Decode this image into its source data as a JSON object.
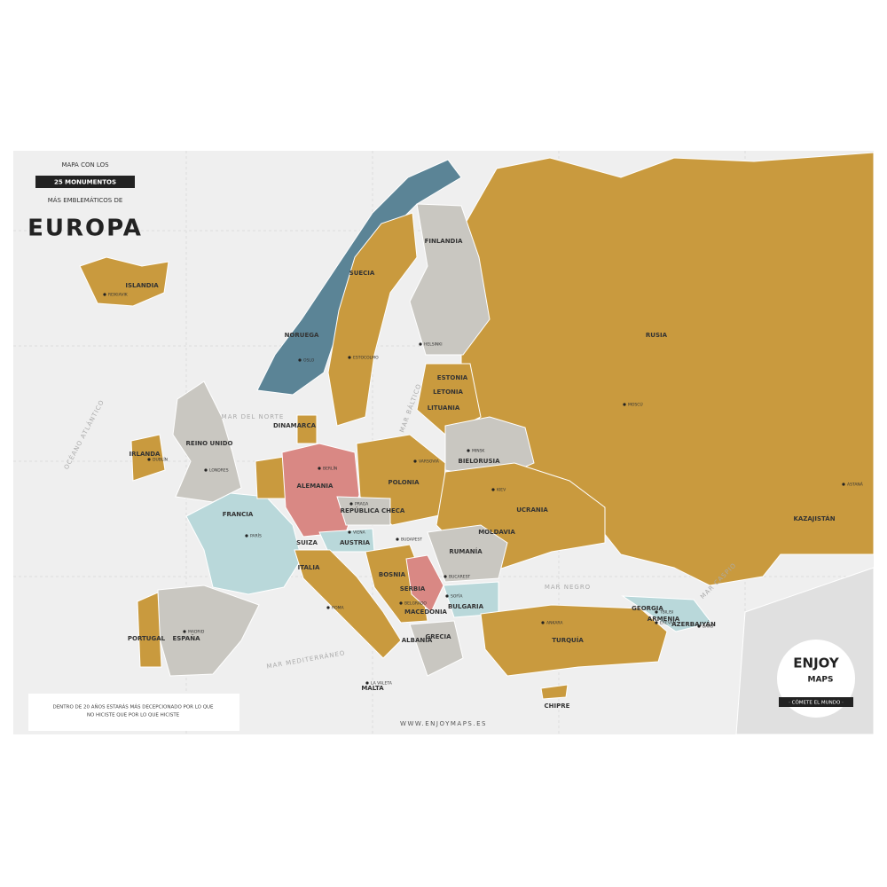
{
  "header": {
    "pre_title": "MAPA CON LOS",
    "badge": "25 MONUMENTOS",
    "subtitle": "MÁS EMBLEMÁTICOS DE",
    "title": "EUROPA"
  },
  "countries": [
    "ISLANDIA",
    "NORUEGA",
    "SUECIA",
    "FINLANDIA",
    "RUSIA",
    "ESTONIA",
    "LETONIA",
    "LITUANIA",
    "BIELORUSIA",
    "POLONIA",
    "ALEMANIA",
    "DINAMARCA",
    "IRLANDA",
    "REINO UNIDO",
    "FRANCIA",
    "ESPAÑA",
    "PORTUGAL",
    "ITALIA",
    "SUIZA",
    "AUSTRIA",
    "REPÚBLICA CHECA",
    "RUMANÍA",
    "MOLDAVIA",
    "UCRANIA",
    "BULGARIA",
    "SERBIA",
    "BOSNIA",
    "ALBANIA",
    "MACEDONIA",
    "GRECIA",
    "TURQUÍA",
    "GEORGIA",
    "ARMENIA",
    "AZERBAIYÁN",
    "KAZAJISTÁN",
    "MALTA",
    "CHIPRE"
  ],
  "cities": [
    "REIKIAVIK",
    "OSLO",
    "ESTOCOLMO",
    "HELSINKI",
    "MOSCÚ",
    "MINSK",
    "VARSOVIA",
    "BERLÍN",
    "DUBLÍN",
    "LONDRES",
    "PARÍS",
    "MADRID",
    "PRAGA",
    "VIENA",
    "BUDAPEST",
    "BUCAREST",
    "SOFÍA",
    "BELGRADO",
    "KIEV",
    "ANKARA",
    "ASTANÁ",
    "TBILISI",
    "EREVÁN",
    "BAKÚ",
    "ROMA",
    "LA VALETA"
  ],
  "seas": [
    "OCÉANO ATLÁNTICO",
    "MAR DEL NORTE",
    "MAR BÁLTICO",
    "MAR NEGRO",
    "MAR CASPIO",
    "MAR MEDITERRÁNEO"
  ],
  "quote": {
    "line1": "DENTRO DE 20 AÑOS ESTARÁS MÁS DECEPCIONADO POR LO QUE",
    "line2": "NO HICISTE QUE POR LO QUE HICISTE"
  },
  "website": "WWW.ENJOYMAPS.ES",
  "logo": {
    "line1": "ENJOY",
    "line2": "MAPS",
    "tagline": "· CÓMETE EL MUNDO ·"
  }
}
